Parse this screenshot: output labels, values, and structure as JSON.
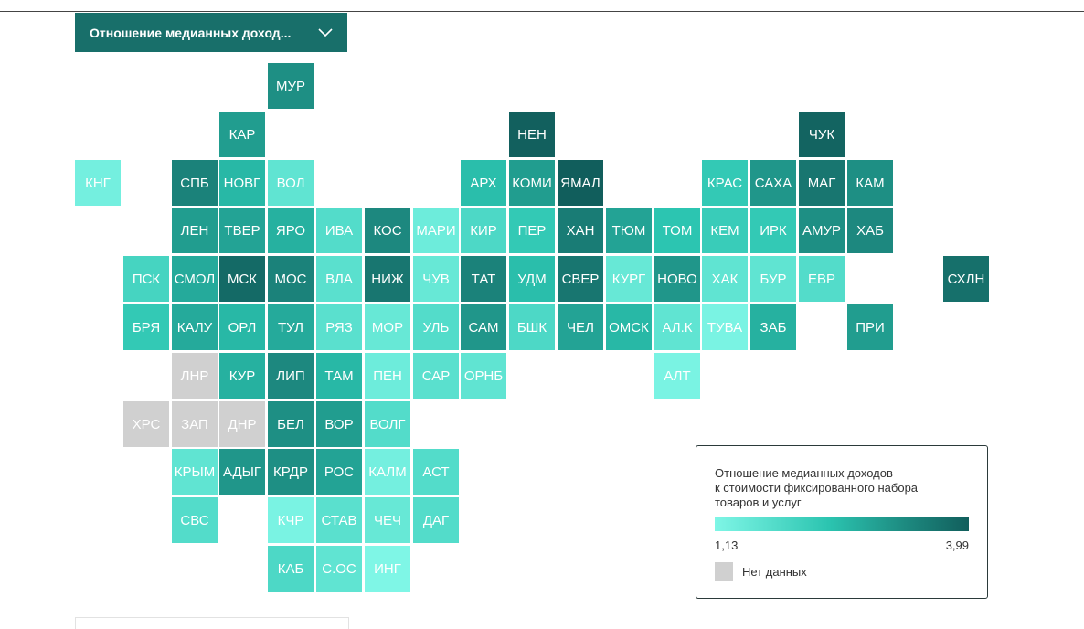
{
  "dropdown": {
    "label": "Отношение медианных доход..."
  },
  "legend": {
    "title_lines": [
      "Отношение медианных доходов",
      "к стоимости фиксированного набора",
      "товаров и услуг"
    ],
    "min_label": "1,13",
    "max_label": "3,99",
    "no_data_label": "Нет данных",
    "colors": {
      "low": "#7ff6e6",
      "high": "#115e5c",
      "no_data": "#d0d0d0"
    }
  },
  "chart_data": {
    "type": "heatmap",
    "title": "Отношение медианных доходов к стоимости фиксированного набора товаров и услуг",
    "scale": {
      "min": 1.13,
      "max": 3.99
    },
    "regions": [
      {
        "label": "МУР",
        "col": 4,
        "row": 0,
        "value": 3.2
      },
      {
        "label": "КАР",
        "col": 3,
        "row": 1,
        "value": 3.0
      },
      {
        "label": "НЕН",
        "col": 9,
        "row": 1,
        "value": 3.95
      },
      {
        "label": "ЧУК",
        "col": 15,
        "row": 1,
        "value": 3.9
      },
      {
        "label": "КНГ",
        "col": 0,
        "row": 2,
        "value": 1.3
      },
      {
        "label": "СПБ",
        "col": 2,
        "row": 2,
        "value": 3.4
      },
      {
        "label": "НОВГ",
        "col": 3,
        "row": 2,
        "value": 2.6
      },
      {
        "label": "ВОЛ",
        "col": 4,
        "row": 2,
        "value": 1.6
      },
      {
        "label": "АРХ",
        "col": 8,
        "row": 2,
        "value": 2.5
      },
      {
        "label": "КОМИ",
        "col": 9,
        "row": 2,
        "value": 3.0
      },
      {
        "label": "ЯМАЛ",
        "col": 10,
        "row": 2,
        "value": 3.99
      },
      {
        "label": "КРАС",
        "col": 13,
        "row": 2,
        "value": 2.3
      },
      {
        "label": "САХА",
        "col": 14,
        "row": 2,
        "value": 3.1
      },
      {
        "label": "МАГ",
        "col": 15,
        "row": 2,
        "value": 3.6
      },
      {
        "label": "КАМ",
        "col": 16,
        "row": 2,
        "value": 3.2
      },
      {
        "label": "ЛЕН",
        "col": 2,
        "row": 3,
        "value": 3.0
      },
      {
        "label": "ТВЕР",
        "col": 3,
        "row": 3,
        "value": 2.9
      },
      {
        "label": "ЯРО",
        "col": 4,
        "row": 3,
        "value": 2.7
      },
      {
        "label": "ИВА",
        "col": 5,
        "row": 3,
        "value": 1.8
      },
      {
        "label": "КОС",
        "col": 6,
        "row": 3,
        "value": 3.3
      },
      {
        "label": "МАРИ",
        "col": 7,
        "row": 3,
        "value": 1.4
      },
      {
        "label": "КИР",
        "col": 8,
        "row": 3,
        "value": 1.9
      },
      {
        "label": "ПЕР",
        "col": 9,
        "row": 3,
        "value": 2.3
      },
      {
        "label": "ХАН",
        "col": 10,
        "row": 3,
        "value": 3.5
      },
      {
        "label": "ТЮМ",
        "col": 11,
        "row": 3,
        "value": 2.9
      },
      {
        "label": "ТОМ",
        "col": 12,
        "row": 3,
        "value": 2.4
      },
      {
        "label": "КЕМ",
        "col": 13,
        "row": 3,
        "value": 2.2
      },
      {
        "label": "ИРК",
        "col": 14,
        "row": 3,
        "value": 2.3
      },
      {
        "label": "АМУР",
        "col": 15,
        "row": 3,
        "value": 3.2
      },
      {
        "label": "ХАБ",
        "col": 16,
        "row": 3,
        "value": 3.3
      },
      {
        "label": "ПСК",
        "col": 1,
        "row": 4,
        "value": 2.0
      },
      {
        "label": "СМОЛ",
        "col": 2,
        "row": 4,
        "value": 2.8
      },
      {
        "label": "МСК",
        "col": 3,
        "row": 4,
        "value": 3.8
      },
      {
        "label": "МОС",
        "col": 4,
        "row": 4,
        "value": 3.4
      },
      {
        "label": "ВЛА",
        "col": 5,
        "row": 4,
        "value": 1.7
      },
      {
        "label": "НИЖ",
        "col": 6,
        "row": 4,
        "value": 3.6
      },
      {
        "label": "ЧУВ",
        "col": 7,
        "row": 4,
        "value": 1.5
      },
      {
        "label": "ТАТ",
        "col": 8,
        "row": 4,
        "value": 3.4
      },
      {
        "label": "УДМ",
        "col": 9,
        "row": 4,
        "value": 2.5
      },
      {
        "label": "СВЕР",
        "col": 10,
        "row": 4,
        "value": 3.6
      },
      {
        "label": "КУРГ",
        "col": 11,
        "row": 4,
        "value": 1.5
      },
      {
        "label": "НОВО",
        "col": 12,
        "row": 4,
        "value": 3.1
      },
      {
        "label": "ХАК",
        "col": 13,
        "row": 4,
        "value": 1.6
      },
      {
        "label": "БУР",
        "col": 14,
        "row": 4,
        "value": 1.6
      },
      {
        "label": "ЕВР",
        "col": 15,
        "row": 4,
        "value": 1.8
      },
      {
        "label": "СХЛН",
        "col": 18,
        "row": 4,
        "value": 3.7
      },
      {
        "label": "БРЯ",
        "col": 1,
        "row": 5,
        "value": 2.3
      },
      {
        "label": "КАЛУ",
        "col": 2,
        "row": 5,
        "value": 2.8
      },
      {
        "label": "ОРЛ",
        "col": 3,
        "row": 5,
        "value": 2.6
      },
      {
        "label": "ТУЛ",
        "col": 4,
        "row": 5,
        "value": 2.8
      },
      {
        "label": "РЯЗ",
        "col": 5,
        "row": 5,
        "value": 1.7
      },
      {
        "label": "МОР",
        "col": 6,
        "row": 5,
        "value": 1.5
      },
      {
        "label": "УЛЬ",
        "col": 7,
        "row": 5,
        "value": 1.8
      },
      {
        "label": "САМ",
        "col": 8,
        "row": 5,
        "value": 3.1
      },
      {
        "label": "БШК",
        "col": 9,
        "row": 5,
        "value": 1.9
      },
      {
        "label": "ЧЕЛ",
        "col": 10,
        "row": 5,
        "value": 2.9
      },
      {
        "label": "ОМСК",
        "col": 11,
        "row": 5,
        "value": 2.6
      },
      {
        "label": "АЛ.К",
        "col": 12,
        "row": 5,
        "value": 1.6
      },
      {
        "label": "ТУВА",
        "col": 13,
        "row": 5,
        "value": 1.2
      },
      {
        "label": "ЗАБ",
        "col": 14,
        "row": 5,
        "value": 2.7
      },
      {
        "label": "ПРИ",
        "col": 16,
        "row": 5,
        "value": 3.0
      },
      {
        "label": "ЛНР",
        "col": 2,
        "row": 6,
        "value": null
      },
      {
        "label": "КУР",
        "col": 3,
        "row": 6,
        "value": 2.7
      },
      {
        "label": "ЛИП",
        "col": 4,
        "row": 6,
        "value": 3.3
      },
      {
        "label": "ТАМ",
        "col": 5,
        "row": 6,
        "value": 2.6
      },
      {
        "label": "ПЕН",
        "col": 6,
        "row": 6,
        "value": 1.4
      },
      {
        "label": "САР",
        "col": 7,
        "row": 6,
        "value": 1.7
      },
      {
        "label": "ОРНБ",
        "col": 8,
        "row": 6,
        "value": 1.6
      },
      {
        "label": "АЛТ",
        "col": 12,
        "row": 6,
        "value": 1.2
      },
      {
        "label": "ХРС",
        "col": 1,
        "row": 7,
        "value": null
      },
      {
        "label": "ЗАП",
        "col": 2,
        "row": 7,
        "value": null
      },
      {
        "label": "ДНР",
        "col": 3,
        "row": 7,
        "value": null
      },
      {
        "label": "БЕЛ",
        "col": 4,
        "row": 7,
        "value": 3.2
      },
      {
        "label": "ВОР",
        "col": 5,
        "row": 7,
        "value": 3.0
      },
      {
        "label": "ВОЛГ",
        "col": 6,
        "row": 7,
        "value": 1.8
      },
      {
        "label": "КРЫМ",
        "col": 2,
        "row": 8,
        "value": 1.6
      },
      {
        "label": "АДЫГ",
        "col": 3,
        "row": 8,
        "value": 3.1
      },
      {
        "label": "КРДР",
        "col": 4,
        "row": 8,
        "value": 3.2
      },
      {
        "label": "РОС",
        "col": 5,
        "row": 8,
        "value": 2.9
      },
      {
        "label": "КАЛМ",
        "col": 6,
        "row": 8,
        "value": 1.3
      },
      {
        "label": "АСТ",
        "col": 7,
        "row": 8,
        "value": 1.8
      },
      {
        "label": "СВС",
        "col": 2,
        "row": 9,
        "value": 1.8
      },
      {
        "label": "КЧР",
        "col": 4,
        "row": 9,
        "value": 1.2
      },
      {
        "label": "СТАВ",
        "col": 5,
        "row": 9,
        "value": 1.7
      },
      {
        "label": "ЧЕЧ",
        "col": 6,
        "row": 9,
        "value": 1.5
      },
      {
        "label": "ДАГ",
        "col": 7,
        "row": 9,
        "value": 1.8
      },
      {
        "label": "КАБ",
        "col": 4,
        "row": 10,
        "value": 1.9
      },
      {
        "label": "С.ОС",
        "col": 5,
        "row": 10,
        "value": 1.6
      },
      {
        "label": "ИНГ",
        "col": 6,
        "row": 10,
        "value": 1.13
      }
    ]
  }
}
